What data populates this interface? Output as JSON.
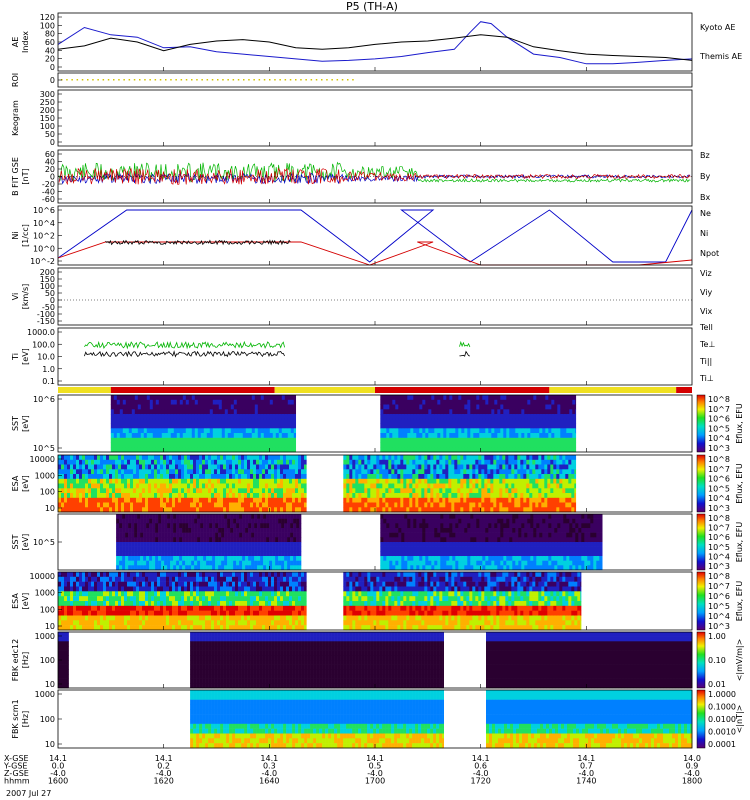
{
  "title": "P5 (TH-A)",
  "date": "2007 Jul 27",
  "x_axis": {
    "row_labels": [
      "X-GSE",
      "Y-GSE",
      "Z-GSE",
      "hhmm"
    ],
    "columns": [
      {
        "rows": [
          "14.1",
          "0.0",
          "-4.0",
          "1600"
        ]
      },
      {
        "rows": [
          "14.1",
          "0.2",
          "-4.0",
          "1620"
        ]
      },
      {
        "rows": [
          "14.1",
          "0.3",
          "-4.0",
          "1640"
        ]
      },
      {
        "rows": [
          "14.1",
          "0.5",
          "-4.0",
          "1700"
        ]
      },
      {
        "rows": [
          "14.1",
          "0.6",
          "-4.0",
          "1720"
        ]
      },
      {
        "rows": [
          "14.1",
          "0.7",
          "-4.0",
          "1740"
        ]
      },
      {
        "rows": [
          "14.0",
          "0.9",
          "-4.0",
          "1800"
        ]
      }
    ]
  },
  "chart_data": [
    {
      "type": "line",
      "ylabel": "AE Index",
      "yticks": [
        "120",
        "100",
        "80",
        "60",
        "40",
        "20",
        "0"
      ],
      "ylim": [
        0,
        120
      ],
      "series": [
        {
          "name": "Kyoto AE",
          "color": "#1a1acc",
          "x": [
            1600,
            1605,
            1610,
            1615,
            1620,
            1625,
            1630,
            1635,
            1640,
            1645,
            1650,
            1655,
            1700,
            1705,
            1710,
            1715,
            1718,
            1720,
            1722,
            1725,
            1730,
            1735,
            1740,
            1745,
            1750,
            1755,
            1800
          ],
          "y": [
            55,
            90,
            75,
            70,
            48,
            50,
            40,
            35,
            30,
            25,
            20,
            22,
            25,
            30,
            38,
            45,
            80,
            102,
            98,
            70,
            35,
            28,
            15,
            15,
            18,
            22,
            25
          ]
        },
        {
          "name": "Themis AE",
          "color": "#000000",
          "x": [
            1600,
            1605,
            1610,
            1615,
            1620,
            1625,
            1630,
            1635,
            1640,
            1645,
            1650,
            1655,
            1700,
            1705,
            1710,
            1715,
            1720,
            1725,
            1730,
            1735,
            1740,
            1745,
            1750,
            1755,
            1800
          ],
          "y": [
            45,
            52,
            68,
            60,
            42,
            55,
            62,
            65,
            60,
            48,
            45,
            48,
            55,
            60,
            62,
            68,
            75,
            70,
            50,
            42,
            35,
            32,
            30,
            28,
            22
          ]
        }
      ]
    },
    {
      "type": "line",
      "ylabel": "ROI",
      "yticks": [
        "0"
      ],
      "series": [
        {
          "name": "ROI",
          "color": "#d4c400",
          "x": [
            1600,
            1656
          ],
          "y": [
            0,
            0
          ]
        }
      ]
    },
    {
      "type": "line",
      "ylabel": "Keogram",
      "yticks": [
        "300",
        "250",
        "200",
        "150",
        "100",
        "50",
        "0"
      ],
      "ylim": [
        0,
        300
      ],
      "series": []
    },
    {
      "type": "line",
      "ylabel": "B FIT GSE [nT]",
      "yticks": [
        "60",
        "40",
        "20",
        "0",
        "-20",
        "-40",
        "-60"
      ],
      "ylim": [
        -60,
        60
      ],
      "series": [
        {
          "name": "Bz",
          "color": "#d40000"
        },
        {
          "name": "By",
          "color": "#00b400"
        },
        {
          "name": "Bx",
          "color": "#0000c8"
        }
      ]
    },
    {
      "type": "line",
      "ylabel": "Ni [1/cc]",
      "yticks": [
        "10^6",
        "10^4",
        "10^2",
        "10^0",
        "10^-2"
      ],
      "series": [
        {
          "name": "Ne",
          "color": "#d40000"
        },
        {
          "name": "Ni",
          "color": "#000000"
        },
        {
          "name": "Npot",
          "color": "#0000c8"
        }
      ]
    },
    {
      "type": "line",
      "ylabel": "Vi [km/s]",
      "yticks": [
        "200",
        "150",
        "100",
        "50",
        "0",
        "-50",
        "-100",
        "-150"
      ],
      "series": [
        {
          "name": "Viz",
          "color": "#d40000"
        },
        {
          "name": "Viy",
          "color": "#00b400"
        },
        {
          "name": "Vix",
          "color": "#0000c8"
        }
      ]
    },
    {
      "type": "line",
      "ylabel": "Ti [eV]",
      "yticks": [
        "1000.0",
        "100.0",
        "10.0",
        "1.0",
        "0.1"
      ],
      "series": [
        {
          "name": "Tell",
          "color": "#000000"
        },
        {
          "name": "Te⊥",
          "color": "#d40000"
        },
        {
          "name": "Ti||",
          "color": "#00b400"
        },
        {
          "name": "Ti⊥",
          "color": "#0000c8"
        }
      ]
    },
    {
      "type": "heatmap",
      "ylabel": "SST [eV]",
      "yticks": [
        "10^6",
        "10^5"
      ],
      "colorbar_label": "Eflux, EFU",
      "colorbar_ticks": [
        "10^8",
        "10^7",
        "10^6",
        "10^5",
        "10^4",
        "10^3"
      ]
    },
    {
      "type": "heatmap",
      "ylabel": "ESA [eV]",
      "yticks": [
        "10000",
        "1000",
        "100",
        "10"
      ],
      "colorbar_label": "Eflux, EFU",
      "colorbar_ticks": [
        "10^8",
        "10^7",
        "10^6",
        "10^5",
        "10^4",
        "10^3"
      ]
    },
    {
      "type": "heatmap",
      "ylabel": "SST [eV]",
      "yticks": [
        "10^5"
      ],
      "colorbar_label": "Eflux, EFU",
      "colorbar_ticks": [
        "10^8",
        "10^7",
        "10^6",
        "10^5",
        "10^4",
        "10^3"
      ]
    },
    {
      "type": "heatmap",
      "ylabel": "ESA [eV]",
      "yticks": [
        "10000",
        "1000",
        "100",
        "10"
      ],
      "colorbar_label": "Eflux, EFU",
      "colorbar_ticks": [
        "10^8",
        "10^7",
        "10^6",
        "10^5",
        "10^4",
        "10^3"
      ]
    },
    {
      "type": "heatmap",
      "ylabel": "FBK edc12 [Hz]",
      "yticks": [
        "1000",
        "100",
        "10"
      ],
      "colorbar_label": "<|mV/m|>",
      "colorbar_ticks": [
        "1.00",
        "0.10",
        "0.01"
      ]
    },
    {
      "type": "heatmap",
      "ylabel": "FBK scm1 [Hz]",
      "yticks": [
        "1000",
        "100",
        "10"
      ],
      "colorbar_label": "<|nT|>",
      "colorbar_ticks": [
        "1.0000",
        "0.1000",
        "0.0100",
        "0.0010",
        "0.0001"
      ]
    }
  ],
  "colors": {
    "mode_bar_fast": "#d40000",
    "mode_bar_slow": "#f0e020"
  }
}
